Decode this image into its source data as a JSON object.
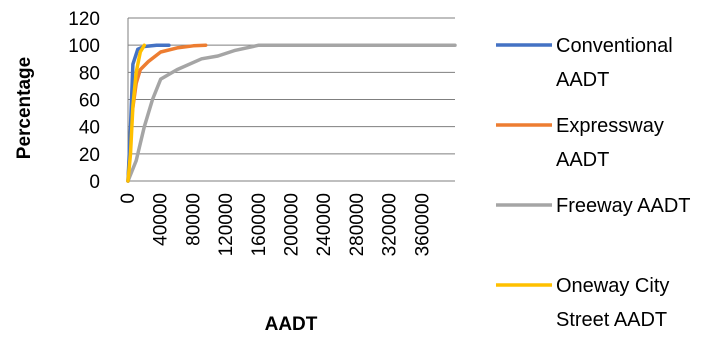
{
  "chart_data": {
    "type": "line",
    "title": "",
    "xlabel": "AADT",
    "ylabel": "Percentage",
    "xlim": [
      0,
      400000
    ],
    "ylim": [
      0,
      120
    ],
    "grid": true,
    "legend_position": "right",
    "x_ticks": [
      0,
      40000,
      80000,
      120000,
      160000,
      200000,
      240000,
      280000,
      320000,
      360000
    ],
    "x_tick_labels": [
      "0",
      "40000",
      "80000",
      "120000",
      "160000",
      "200000",
      "240000",
      "280000",
      "320000",
      "360000"
    ],
    "y_ticks": [
      0,
      20,
      40,
      60,
      80,
      100,
      120
    ],
    "y_tick_labels": [
      "0",
      "20",
      "40",
      "60",
      "80",
      "100",
      "120"
    ],
    "series": [
      {
        "name": "Conventional AADT",
        "color": "#4472C4",
        "points": [
          [
            0,
            0
          ],
          [
            3000,
            40
          ],
          [
            6000,
            86
          ],
          [
            12000,
            97
          ],
          [
            20000,
            99
          ],
          [
            35000,
            100
          ],
          [
            50000,
            100
          ]
        ]
      },
      {
        "name": "Expressway AADT",
        "color": "#ED7D31",
        "points": [
          [
            0,
            0
          ],
          [
            5000,
            50
          ],
          [
            10000,
            72
          ],
          [
            15000,
            82
          ],
          [
            25000,
            88
          ],
          [
            40000,
            95
          ],
          [
            60000,
            98
          ],
          [
            80000,
            99.5
          ],
          [
            95000,
            100
          ]
        ]
      },
      {
        "name": "Freeway AADT",
        "color": "#A5A5A5",
        "points": [
          [
            0,
            0
          ],
          [
            10000,
            15
          ],
          [
            20000,
            40
          ],
          [
            30000,
            60
          ],
          [
            40000,
            75
          ],
          [
            60000,
            82
          ],
          [
            90000,
            90
          ],
          [
            110000,
            92
          ],
          [
            130000,
            96
          ],
          [
            160000,
            100
          ],
          [
            250000,
            100
          ],
          [
            400000,
            100
          ]
        ]
      },
      {
        "name": "Oneway City Street AADT",
        "color": "#FFC000",
        "points": [
          [
            0,
            0
          ],
          [
            3000,
            20
          ],
          [
            6000,
            55
          ],
          [
            10000,
            80
          ],
          [
            15000,
            95
          ],
          [
            20000,
            100
          ]
        ]
      }
    ]
  },
  "legend": {
    "items": [
      {
        "line1": "Conventional",
        "line2": "AADT",
        "color": "#4472C4"
      },
      {
        "line1": "Expressway",
        "line2": "AADT",
        "color": "#ED7D31"
      },
      {
        "line1": "Freeway AADT",
        "line2": "",
        "color": "#A5A5A5"
      },
      {
        "line1": "Oneway City",
        "line2": "Street AADT",
        "color": "#FFC000"
      }
    ]
  }
}
